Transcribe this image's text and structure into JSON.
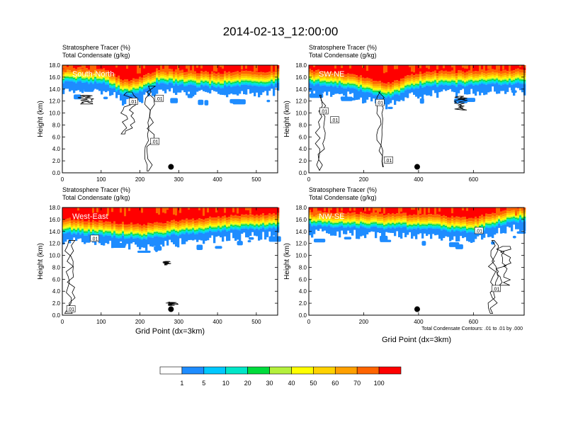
{
  "title": "2014-02-13_12:00:00",
  "colors": {
    "levels": [
      "#ffffff",
      "#1e8cff",
      "#00c8ff",
      "#00e6c8",
      "#00dc3c",
      "#b4f03c",
      "#ffff00",
      "#ffd200",
      "#ffa000",
      "#ff6400",
      "#ff0000"
    ],
    "contour": "#000000",
    "frame": "#000000"
  },
  "colorbar": {
    "labels": [
      "1",
      "5",
      "10",
      "20",
      "30",
      "40",
      "50",
      "60",
      "70",
      "100"
    ]
  },
  "footnote": "Total Condensate Contours: .01 to .01 by .000",
  "xlabel_common": "Grid Point (dx=3km)",
  "chart_data": [
    {
      "type": "heatmap",
      "name": "South-North",
      "subtitle1": "Stratosphere Tracer   (%)",
      "subtitle2": "Total Condensate   (g/kg)",
      "ylabel": "Height (km)",
      "xlabel": "",
      "xlim": [
        0,
        555
      ],
      "ylim": [
        0,
        18
      ],
      "xticks": [
        0,
        100,
        200,
        300,
        400,
        500
      ],
      "yticks": [
        "0.0",
        "2.0",
        "4.0",
        "6.0",
        "8.0",
        "10.0",
        "12.0",
        "14.0",
        "16.0",
        "18.0"
      ],
      "tropopause_km": [
        [
          0,
          15.6
        ],
        [
          100,
          15.4
        ],
        [
          160,
          13.4
        ],
        [
          200,
          14.0
        ],
        [
          240,
          15.2
        ],
        [
          300,
          15.1
        ],
        [
          380,
          14.7
        ],
        [
          500,
          14.9
        ],
        [
          555,
          15.2
        ]
      ],
      "contour_labels": [
        ".01",
        ".01",
        ".01"
      ],
      "marker": {
        "x": 280,
        "y": 1.0
      }
    },
    {
      "type": "heatmap",
      "name": "SW-NE",
      "subtitle1": "Stratosphere Tracer   (%)",
      "subtitle2": "Total Condensate   (g/kg)",
      "ylabel": "Height (km)",
      "xlabel": "",
      "xlim": [
        0,
        785
      ],
      "ylim": [
        0,
        18
      ],
      "xticks": [
        0,
        200,
        400,
        600
      ],
      "yticks": [
        "0.0",
        "2.0",
        "4.0",
        "6.0",
        "8.0",
        "10.0",
        "12.0",
        "14.0",
        "16.0",
        "18.0"
      ],
      "tropopause_km": [
        [
          0,
          15.2
        ],
        [
          150,
          14.6
        ],
        [
          280,
          12.8
        ],
        [
          400,
          14.8
        ],
        [
          600,
          15.0
        ],
        [
          785,
          15.4
        ]
      ],
      "contour_labels": [
        ".01",
        ".01",
        ".01",
        ".01"
      ],
      "marker": {
        "x": 395,
        "y": 1.0
      }
    },
    {
      "type": "heatmap",
      "name": "West-East",
      "subtitle1": "Stratosphere Tracer   (%)",
      "subtitle2": "Total Condensate   (g/kg)",
      "ylabel": "Height (km)",
      "xlabel": "Grid Point (dx=3km)",
      "xlim": [
        0,
        555
      ],
      "ylim": [
        0,
        18
      ],
      "xticks": [
        0,
        100,
        200,
        300,
        400,
        500
      ],
      "yticks": [
        "0.0",
        "2.0",
        "4.0",
        "6.0",
        "8.0",
        "10.0",
        "12.0",
        "14.0",
        "16.0",
        "18.0"
      ],
      "tropopause_km": [
        [
          0,
          14.2
        ],
        [
          100,
          13.6
        ],
        [
          200,
          13.2
        ],
        [
          300,
          13.8
        ],
        [
          400,
          14.4
        ],
        [
          555,
          15.0
        ]
      ],
      "contour_labels": [
        ".01",
        ".01"
      ],
      "marker": {
        "x": 280,
        "y": 1.0
      }
    },
    {
      "type": "heatmap",
      "name": "NW-SE",
      "subtitle1": "Stratosphere Tracer   (%)",
      "subtitle2": "Total Condensate   (g/kg)",
      "ylabel": "Height (km)",
      "xlabel": "Grid Point (dx=3km)",
      "xlim": [
        0,
        785
      ],
      "ylim": [
        0,
        18
      ],
      "xticks": [
        0,
        200,
        400,
        600
      ],
      "yticks": [
        "0.0",
        "2.0",
        "4.0",
        "6.0",
        "8.0",
        "10.0",
        "12.0",
        "14.0",
        "16.0",
        "18.0"
      ],
      "tropopause_km": [
        [
          0,
          15.4
        ],
        [
          200,
          15.0
        ],
        [
          400,
          14.8
        ],
        [
          600,
          14.2
        ],
        [
          700,
          15.6
        ],
        [
          785,
          16.2
        ]
      ],
      "contour_labels": [
        ".01",
        ".01"
      ],
      "marker": {
        "x": 395,
        "y": 1.0
      }
    }
  ]
}
